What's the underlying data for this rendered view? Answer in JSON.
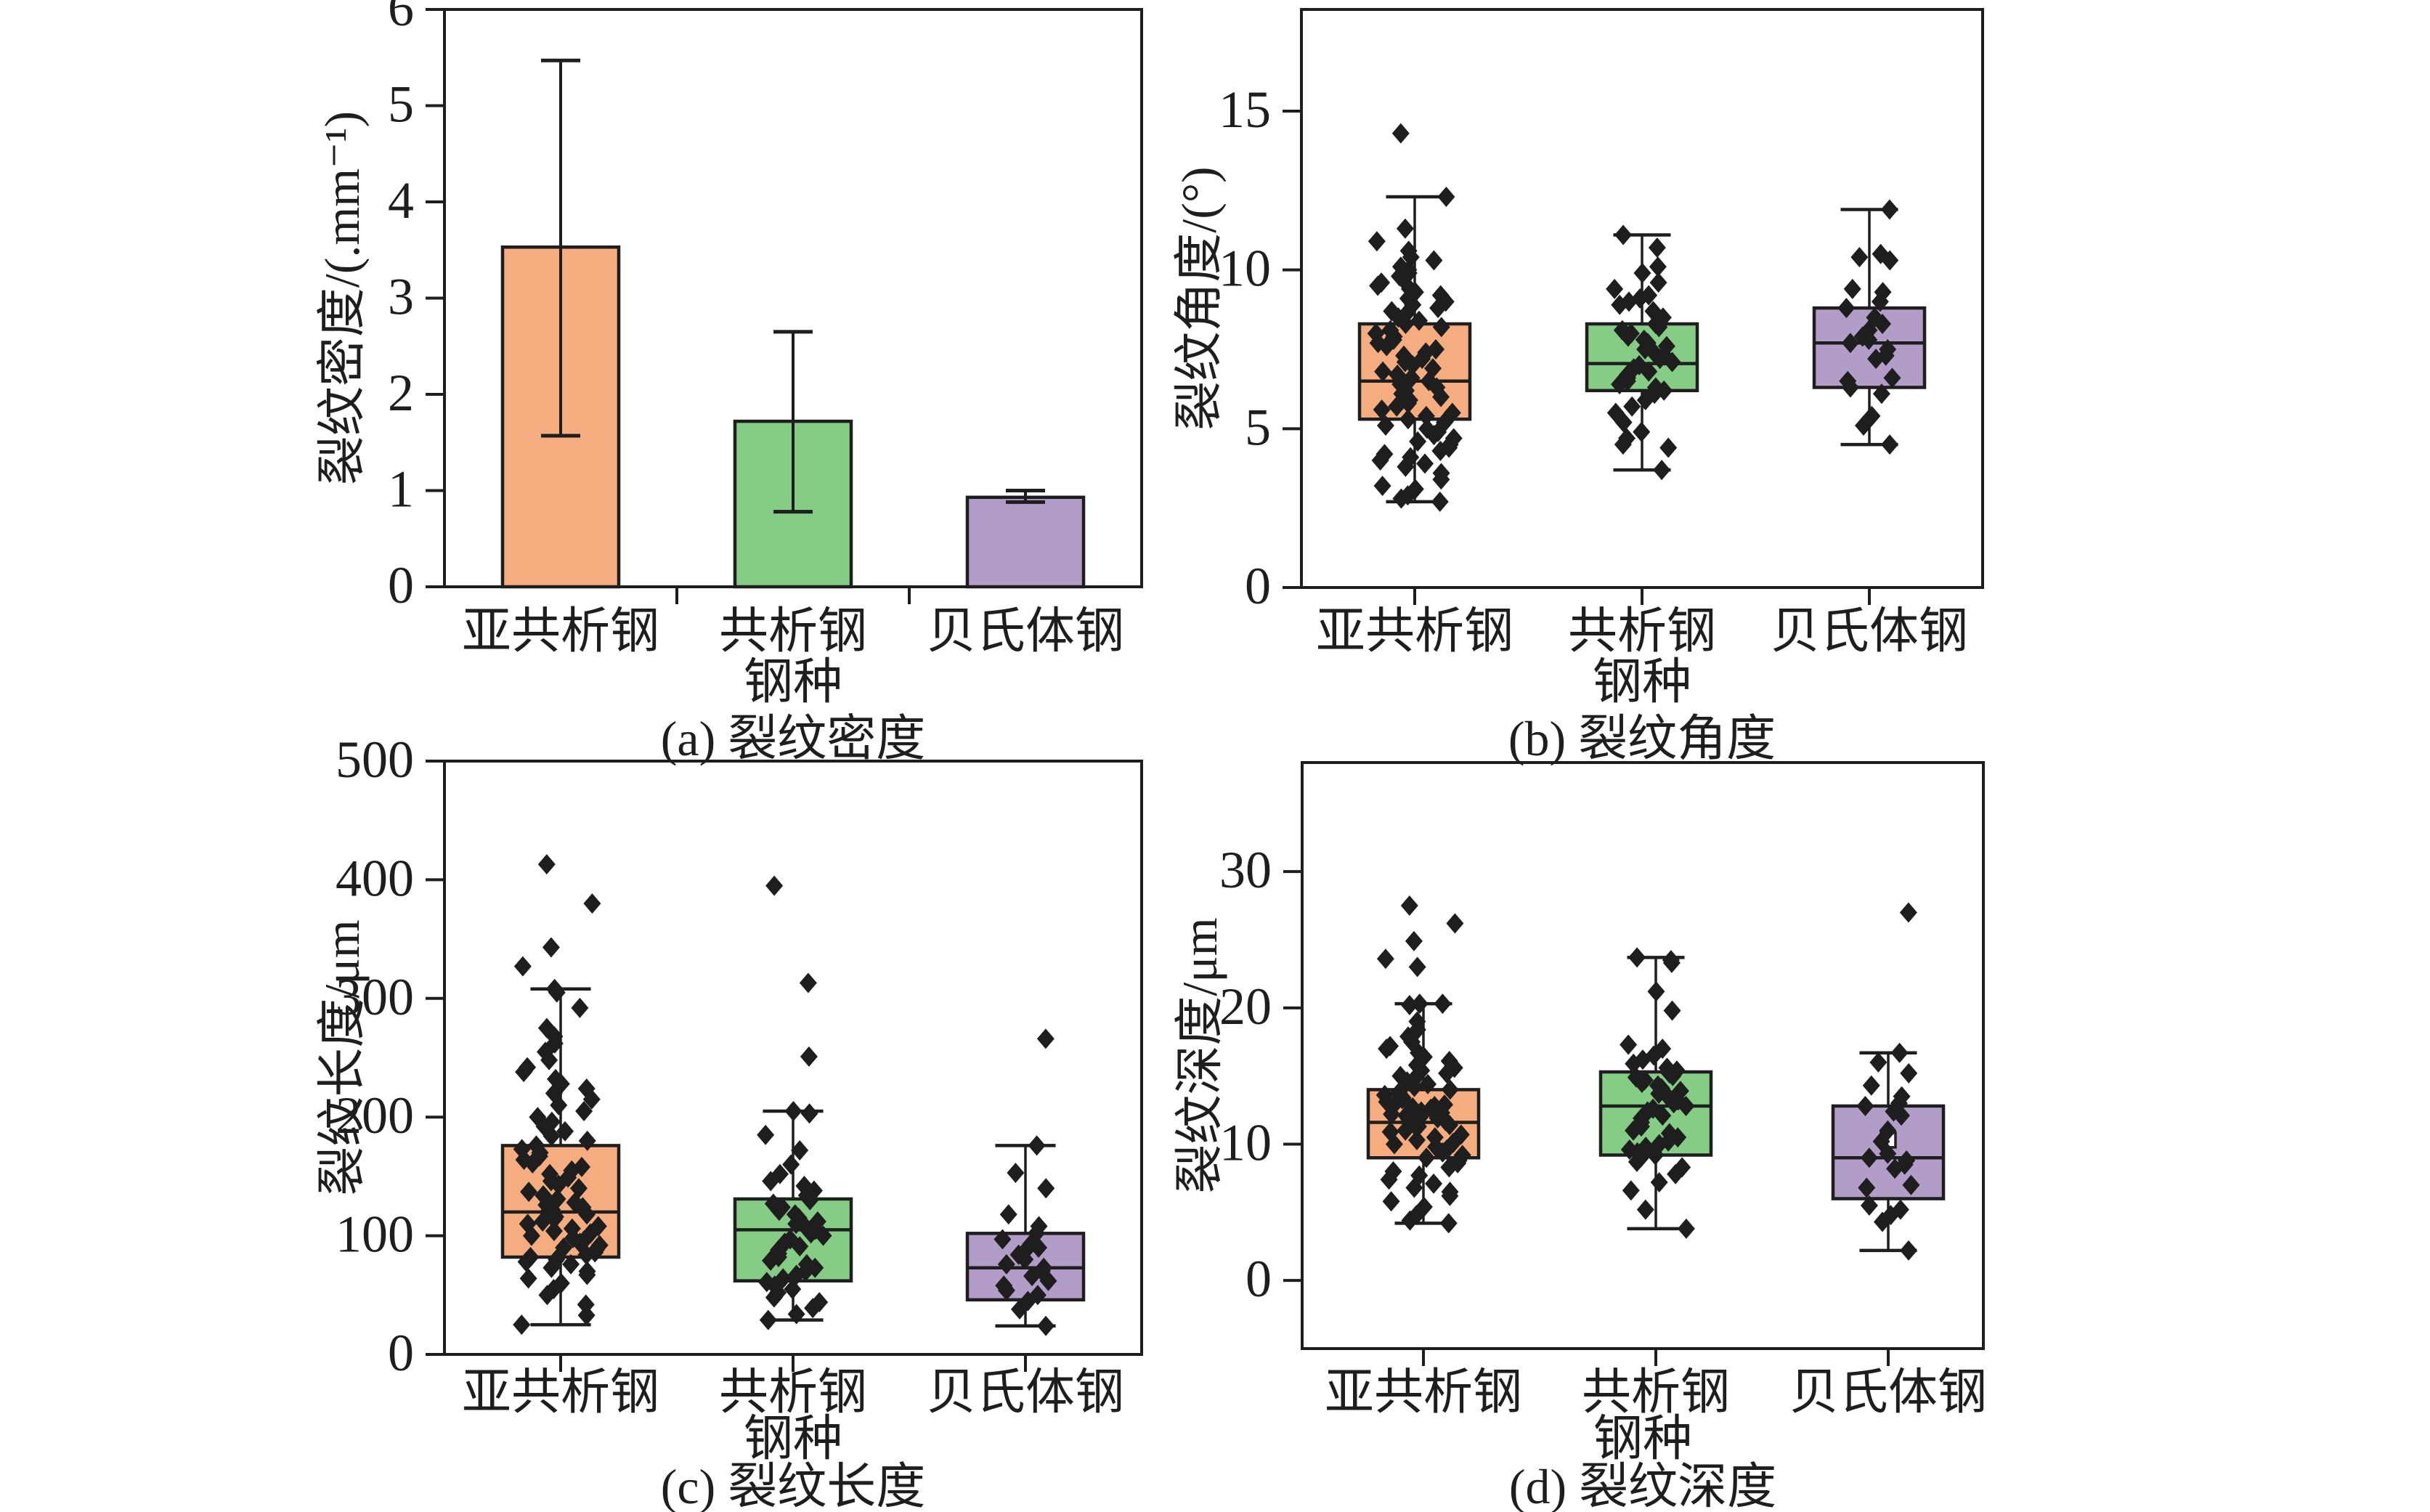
{
  "figure": {
    "background": "#ffffff",
    "line_color": "#1e1e1e",
    "categories": [
      "亚共析钢",
      "共析钢",
      "贝氏体钢"
    ],
    "category_colors": [
      "#F5AC7E",
      "#85CC85",
      "#B29DC9"
    ],
    "xlabel": "钢种"
  },
  "chart_data": [
    {
      "panel": "a",
      "type": "bar",
      "caption": "(a) 裂纹密度",
      "ylabel": "裂纹密度/(.mm⁻¹)",
      "xlabel": "钢种",
      "categories": [
        "亚共析钢",
        "共析钢",
        "贝氏体钢"
      ],
      "values": [
        3.53,
        1.72,
        0.93
      ],
      "error_low": [
        1.57,
        0.78,
        0.88
      ],
      "error_high": [
        5.47,
        2.65,
        1.0
      ],
      "ylim": [
        0,
        6
      ],
      "yticks": [
        0,
        1,
        2,
        3,
        4,
        5,
        6
      ],
      "grid": false,
      "legend": "none"
    },
    {
      "panel": "b",
      "type": "box",
      "caption": "(b) 裂纹角度",
      "ylabel": "裂纹角度/(°)",
      "xlabel": "钢种",
      "categories": [
        "亚共析钢",
        "共析钢",
        "贝氏体钢"
      ],
      "ylim": [
        0,
        18.2
      ],
      "yticks": [
        0,
        5,
        10,
        15
      ],
      "grid": false,
      "boxes": [
        {
          "whisker_low": 2.7,
          "q1": 5.3,
          "median": 6.5,
          "q3": 8.3,
          "whisker_high": 12.3
        },
        {
          "whisker_low": 3.7,
          "q1": 6.2,
          "median": 7.05,
          "q3": 8.3,
          "whisker_high": 11.1
        },
        {
          "whisker_low": 4.5,
          "q1": 6.3,
          "median": 7.7,
          "q3": 8.8,
          "whisker_high": 11.9
        }
      ],
      "points": [
        [
          14.3,
          12.3,
          11.3,
          10.9,
          10.6,
          10.4,
          10.3,
          10.1,
          10.0,
          9.9,
          9.8,
          9.7,
          9.6,
          9.5,
          9.4,
          9.3,
          9.2,
          9.1,
          9.0,
          8.9,
          8.8,
          8.7,
          8.6,
          8.5,
          8.4,
          8.3,
          8.2,
          8.1,
          8.0,
          7.9,
          7.8,
          7.7,
          7.6,
          7.5,
          7.4,
          7.3,
          7.2,
          7.1,
          7.0,
          6.9,
          6.8,
          6.7,
          6.6,
          6.5,
          6.4,
          6.3,
          6.2,
          6.1,
          6.0,
          5.9,
          5.8,
          5.7,
          5.6,
          5.5,
          5.4,
          5.3,
          5.2,
          5.1,
          5.0,
          4.9,
          4.8,
          4.7,
          4.6,
          4.5,
          4.4,
          4.3,
          4.2,
          4.1,
          4.0,
          3.9,
          3.8,
          3.6,
          3.4,
          3.2,
          3.1,
          2.9,
          2.8,
          2.7
        ],
        [
          11.1,
          10.7,
          10.1,
          9.9,
          9.6,
          9.4,
          9.2,
          9.1,
          9.0,
          8.9,
          8.7,
          8.5,
          8.3,
          8.2,
          8.1,
          8.0,
          7.9,
          7.8,
          7.7,
          7.6,
          7.5,
          7.4,
          7.3,
          7.2,
          7.1,
          7.0,
          6.9,
          6.8,
          6.7,
          6.6,
          6.5,
          6.4,
          6.3,
          6.2,
          6.1,
          5.9,
          5.7,
          5.5,
          5.2,
          4.9,
          4.7,
          4.5,
          4.4,
          3.7
        ],
        [
          11.9,
          10.5,
          10.4,
          10.3,
          9.4,
          9.3,
          9.0,
          8.8,
          8.5,
          8.3,
          8.1,
          7.9,
          7.8,
          7.7,
          7.5,
          7.3,
          7.2,
          6.6,
          6.5,
          6.3,
          6.1,
          5.4,
          5.1,
          4.5
        ]
      ]
    },
    {
      "panel": "c",
      "type": "box",
      "caption": "(c) 裂纹长度",
      "ylabel": "裂纹长度/μm",
      "xlabel": "钢种",
      "categories": [
        "亚共析钢",
        "共析钢",
        "贝氏体钢"
      ],
      "ylim": [
        0,
        500
      ],
      "yticks": [
        0,
        100,
        200,
        300,
        400,
        500
      ],
      "grid": false,
      "boxes": [
        {
          "whisker_low": 25,
          "q1": 82,
          "median": 120,
          "q3": 176,
          "whisker_high": 308
        },
        {
          "whisker_low": 29,
          "q1": 62,
          "median": 105,
          "q3": 131,
          "whisker_high": 205
        },
        {
          "whisker_low": 24,
          "q1": 46,
          "median": 73,
          "q3": 102,
          "whisker_high": 176
        }
      ],
      "points": [
        [
          413,
          380,
          343,
          327,
          308,
          305,
          292,
          275,
          268,
          262,
          255,
          248,
          242,
          238,
          232,
          228,
          224,
          220,
          215,
          210,
          205,
          200,
          196,
          192,
          188,
          184,
          180,
          176,
          173,
          170,
          167,
          164,
          161,
          158,
          155,
          152,
          149,
          146,
          143,
          140,
          137,
          134,
          131,
          128,
          126,
          124,
          122,
          120,
          118,
          116,
          114,
          112,
          110,
          108,
          106,
          104,
          102,
          100,
          98,
          96,
          94,
          92,
          90,
          88,
          86,
          84,
          82,
          80,
          78,
          76,
          73,
          70,
          67,
          64,
          60,
          55,
          50,
          42,
          33,
          25
        ],
        [
          395,
          313,
          251,
          205,
          203,
          185,
          172,
          160,
          152,
          146,
          142,
          138,
          134,
          130,
          127,
          124,
          121,
          118,
          115,
          112,
          110,
          108,
          105,
          102,
          100,
          97,
          94,
          91,
          88,
          85,
          82,
          79,
          76,
          73,
          70,
          67,
          64,
          61,
          58,
          55,
          52,
          48,
          44,
          39,
          34,
          29
        ],
        [
          266,
          176,
          153,
          140,
          118,
          108,
          102,
          97,
          93,
          90,
          87,
          84,
          80,
          76,
          73,
          70,
          66,
          62,
          58,
          54,
          50,
          45,
          38,
          24
        ]
      ]
    },
    {
      "panel": "d",
      "type": "box",
      "caption": "(d) 裂纹深度",
      "ylabel": "裂纹深度/μm",
      "xlabel": "钢种",
      "categories": [
        "亚共析钢",
        "共析钢",
        "贝氏体钢"
      ],
      "ylim": [
        -5,
        38
      ],
      "yticks": [
        0,
        10,
        20,
        30
      ],
      "grid": false,
      "boxes": [
        {
          "whisker_low": 4.2,
          "q1": 9.0,
          "median": 11.6,
          "q3": 14.0,
          "whisker_high": 20.3
        },
        {
          "whisker_low": 3.8,
          "q1": 9.2,
          "median": 12.8,
          "q3": 15.3,
          "whisker_high": 23.7
        },
        {
          "whisker_low": 2.2,
          "q1": 6.0,
          "median": 9.0,
          "q3": 12.8,
          "whisker_high": 16.7,
          "mean": 10.3
        }
      ],
      "points": [
        [
          27.5,
          26.2,
          24.9,
          23.6,
          23.0,
          20.3,
          20.3,
          20.2,
          19.0,
          18.4,
          17.9,
          17.5,
          17.2,
          17.0,
          16.7,
          16.4,
          16.1,
          15.8,
          15.6,
          15.4,
          15.2,
          15.0,
          14.8,
          14.6,
          14.4,
          14.2,
          14.0,
          13.8,
          13.6,
          13.4,
          13.3,
          13.1,
          13.0,
          12.9,
          12.8,
          12.7,
          12.6,
          12.5,
          12.4,
          12.3,
          12.2,
          12.1,
          12.0,
          11.9,
          11.8,
          11.7,
          11.6,
          11.5,
          11.4,
          11.3,
          11.2,
          11.0,
          10.9,
          10.7,
          10.5,
          10.3,
          10.1,
          10.0,
          9.8,
          9.6,
          9.4,
          9.2,
          9.0,
          8.8,
          8.6,
          8.3,
          8.0,
          7.7,
          7.4,
          7.1,
          6.8,
          6.5,
          6.2,
          5.8,
          5.4,
          4.8,
          4.4,
          4.2
        ],
        [
          23.7,
          23.5,
          23.3,
          21.2,
          19.8,
          17.3,
          17.0,
          16.5,
          16.2,
          15.9,
          15.6,
          15.4,
          15.2,
          15.0,
          14.9,
          14.7,
          14.5,
          14.3,
          14.1,
          13.9,
          13.7,
          13.5,
          13.2,
          13.0,
          12.8,
          12.6,
          12.4,
          12.1,
          11.9,
          11.6,
          11.3,
          11.0,
          10.8,
          10.5,
          10.2,
          10.0,
          9.8,
          9.6,
          9.4,
          9.2,
          9.0,
          8.7,
          8.3,
          7.8,
          7.2,
          6.6,
          5.2,
          3.8
        ],
        [
          27.0,
          16.7,
          16.0,
          15.2,
          14.3,
          13.5,
          13.0,
          12.8,
          12.4,
          12.1,
          11.0,
          10.2,
          9.3,
          9.0,
          8.8,
          8.5,
          8.2,
          7.0,
          6.8,
          5.5,
          5.2,
          4.8,
          4.3,
          2.2
        ]
      ]
    }
  ]
}
